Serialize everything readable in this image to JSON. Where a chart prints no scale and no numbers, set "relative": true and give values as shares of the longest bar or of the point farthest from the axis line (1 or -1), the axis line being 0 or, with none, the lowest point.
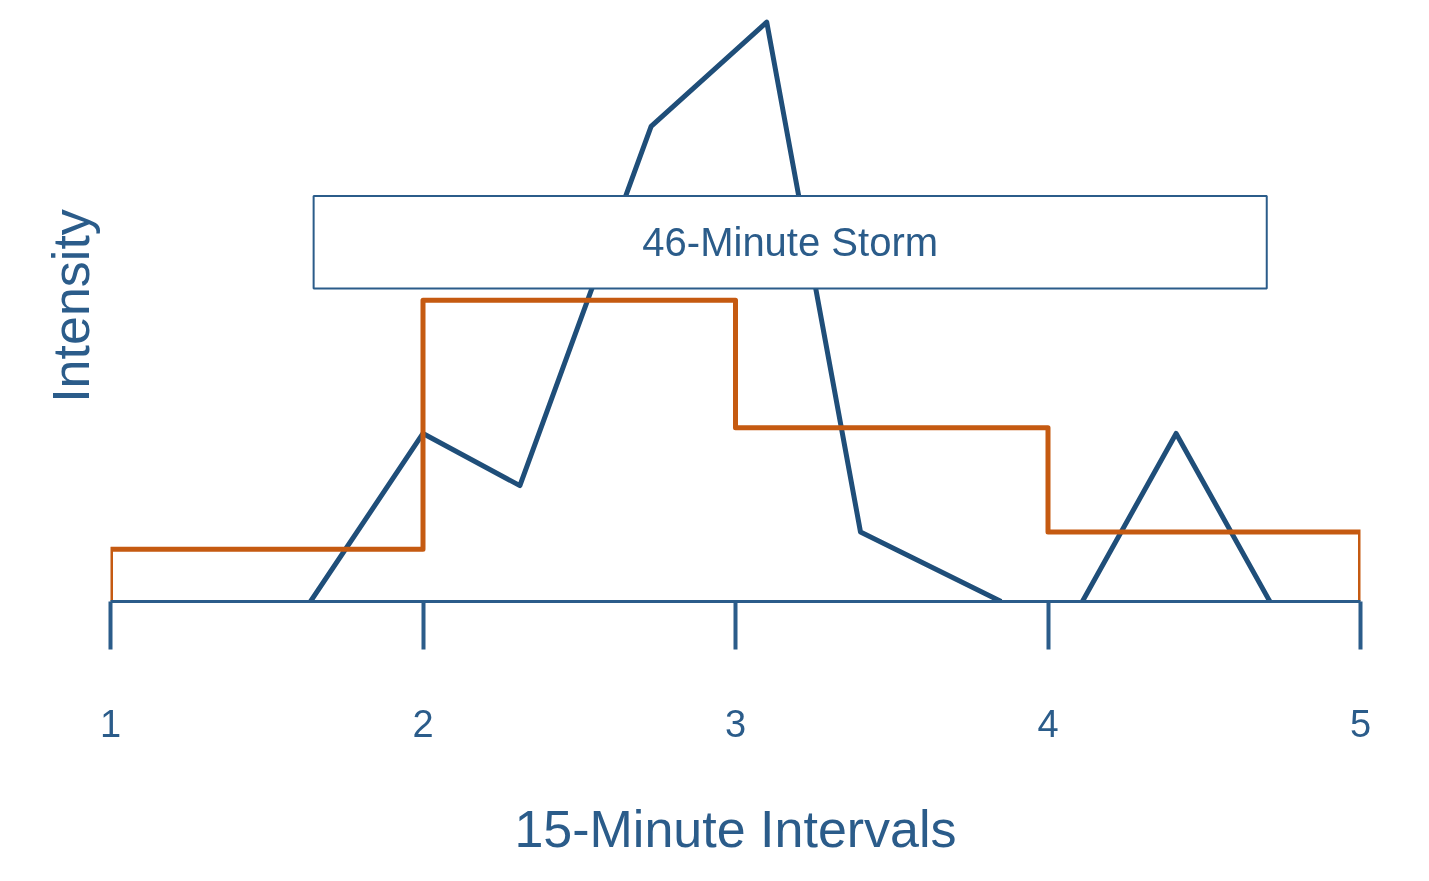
{
  "chart_data": {
    "type": "line",
    "relative": true,
    "xlabel": "15-Minute Intervals",
    "ylabel": "Intensity",
    "xlim": [
      1,
      5
    ],
    "xticks": [
      1,
      2,
      3,
      4,
      5
    ],
    "grid": false,
    "bands": [
      {
        "axis": "x",
        "from": 1.65,
        "to": 4.7,
        "label": "46-Minute Storm",
        "color": "#ffffff"
      }
    ],
    "series": [
      {
        "type": "line",
        "color": "#1f4e79",
        "x": [
          1.64,
          2.0,
          2.31,
          2.73,
          3.1,
          3.4,
          3.85,
          null,
          4.11,
          4.41,
          4.71
        ],
        "values": [
          0,
          0.29,
          0.2,
          0.82,
          1,
          0.12,
          0,
          null,
          0,
          0.29,
          0
        ]
      },
      {
        "type": "step",
        "color": "#c55a11",
        "x": [
          1,
          1,
          2,
          3,
          4,
          5,
          5
        ],
        "values": [
          0,
          0.09,
          0.52,
          0.3,
          0.12,
          0.12,
          0
        ]
      }
    ]
  }
}
